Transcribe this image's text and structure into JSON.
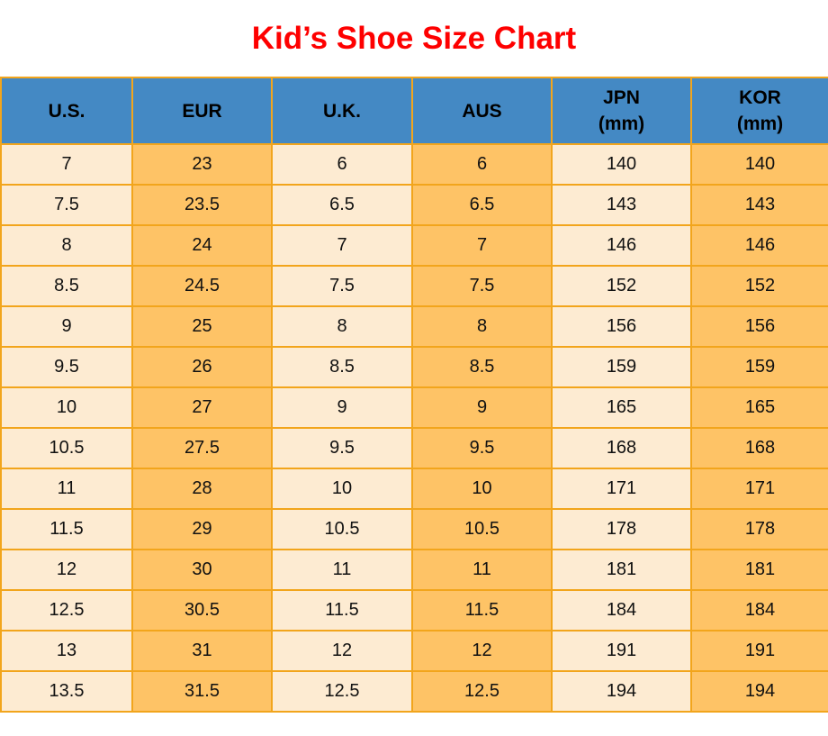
{
  "title": {
    "text": "Kid’s Shoe Size Chart"
  },
  "colors": {
    "page_bg": "#ffffff",
    "title": "#fe0000",
    "header_bg": "#4489c4",
    "header_text": "#000000",
    "cell_light": "#fdebd2",
    "cell_orange": "#fec366",
    "border": "#f2a51c",
    "cell_text": "#111111"
  },
  "chart_data": {
    "type": "table",
    "title": "Kid’s Shoe Size Chart",
    "columns": [
      {
        "key": "us",
        "label": "U.S."
      },
      {
        "key": "eur",
        "label": "EUR"
      },
      {
        "key": "uk",
        "label": "U.K."
      },
      {
        "key": "aus",
        "label": "AUS"
      },
      {
        "key": "jpn",
        "label": "JPN",
        "unit": "(mm)"
      },
      {
        "key": "kor",
        "label": "KOR",
        "unit": "(mm)"
      }
    ],
    "rows": [
      [
        "7",
        "23",
        "6",
        "6",
        "140",
        "140"
      ],
      [
        "7.5",
        "23.5",
        "6.5",
        "6.5",
        "143",
        "143"
      ],
      [
        "8",
        "24",
        "7",
        "7",
        "146",
        "146"
      ],
      [
        "8.5",
        "24.5",
        "7.5",
        "7.5",
        "152",
        "152"
      ],
      [
        "9",
        "25",
        "8",
        "8",
        "156",
        "156"
      ],
      [
        "9.5",
        "26",
        "8.5",
        "8.5",
        "159",
        "159"
      ],
      [
        "10",
        "27",
        "9",
        "9",
        "165",
        "165"
      ],
      [
        "10.5",
        "27.5",
        "9.5",
        "9.5",
        "168",
        "168"
      ],
      [
        "11",
        "28",
        "10",
        "10",
        "171",
        "171"
      ],
      [
        "11.5",
        "29",
        "10.5",
        "10.5",
        "178",
        "178"
      ],
      [
        "12",
        "30",
        "11",
        "11",
        "181",
        "181"
      ],
      [
        "12.5",
        "30.5",
        "11.5",
        "11.5",
        "184",
        "184"
      ],
      [
        "13",
        "31",
        "12",
        "12",
        "191",
        "191"
      ],
      [
        "13.5",
        "31.5",
        "12.5",
        "12.5",
        "194",
        "194"
      ]
    ]
  }
}
